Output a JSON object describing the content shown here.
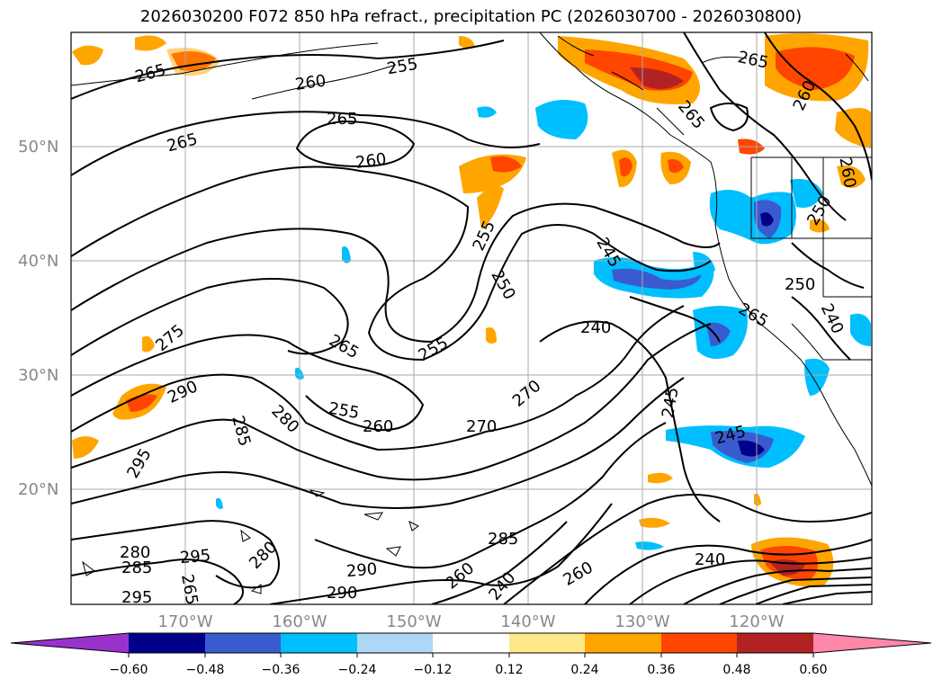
{
  "title": "2026030200 F072 850 hPa refract., precipitation PC (2026030700 - 2026030800)",
  "lat_labels": [
    "50°N",
    "40°N",
    "30°N",
    "20°N"
  ],
  "lon_labels": [
    "170°W",
    "160°W",
    "150°W",
    "140°W",
    "130°W",
    "120°W"
  ],
  "contour_labels": [
    "265",
    "255",
    "260",
    "265",
    "265",
    "260",
    "265",
    "260",
    "255",
    "265",
    "260",
    "250",
    "245",
    "240",
    "250",
    "265",
    "275",
    "290",
    "285",
    "295",
    "280",
    "255",
    "260",
    "265",
    "255",
    "270",
    "270",
    "245",
    "245",
    "240",
    "280",
    "295",
    "280",
    "285",
    "290",
    "295",
    "285",
    "290",
    "260",
    "240",
    "265",
    "260",
    "250",
    "240"
  ],
  "colorbar": {
    "ticks": [
      "−0.60",
      "−0.48",
      "−0.36",
      "−0.24",
      "−0.12",
      "0.12",
      "0.24",
      "0.36",
      "0.48",
      "0.60"
    ],
    "colors": [
      "#9932cc",
      "#00008b",
      "#3a5bd0",
      "#00bfff",
      "#add8f5",
      "#ffffff",
      "#ffe88a",
      "#ffa500",
      "#ff4500",
      "#b22222",
      "#ff88aa"
    ]
  },
  "colors": {
    "land_line": "#000000",
    "grid": "#aaaaaa",
    "axis_label": "#888888"
  }
}
